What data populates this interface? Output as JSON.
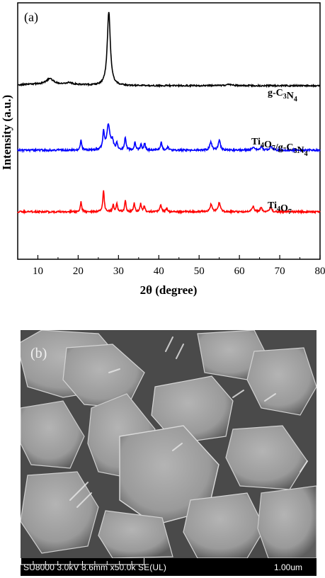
{
  "chart_data": {
    "type": "line",
    "panel_label": "(a)",
    "xlabel": "2θ (degree)",
    "ylabel": "Intensity (a.u.)",
    "xlim": [
      5,
      80
    ],
    "xticks": [
      10,
      20,
      30,
      40,
      50,
      60,
      70,
      80
    ],
    "grid": false,
    "series": [
      {
        "name": "g-C3N4",
        "name_parts": [
          [
            "g-C",
            false
          ],
          [
            "3",
            true
          ],
          [
            "N",
            false
          ],
          [
            "4",
            true
          ]
        ],
        "color": "#000000",
        "baseline": 0.18,
        "peaks": [
          [
            13.0,
            0.05,
            1.0
          ],
          [
            17.8,
            0.015,
            0.8
          ],
          [
            27.6,
            0.72,
            0.45
          ],
          [
            57.5,
            0.01,
            1.2
          ]
        ]
      },
      {
        "name": "Ti4O7/g-C3N4",
        "name_parts": [
          [
            "Ti",
            false
          ],
          [
            "4",
            true
          ],
          [
            "O",
            false
          ],
          [
            "7",
            true
          ],
          [
            "/g-C",
            false
          ],
          [
            "3",
            true
          ],
          [
            "N",
            false
          ],
          [
            "4",
            true
          ]
        ],
        "color": "#0000ff",
        "baseline": 0.0,
        "peaks": [
          [
            20.7,
            0.12,
            0.2
          ],
          [
            26.3,
            0.2,
            0.25
          ],
          [
            27.5,
            0.3,
            0.45
          ],
          [
            28.5,
            0.1,
            0.3
          ],
          [
            29.6,
            0.08,
            0.2
          ],
          [
            31.7,
            0.15,
            0.22
          ],
          [
            34.1,
            0.1,
            0.2
          ],
          [
            35.6,
            0.07,
            0.2
          ],
          [
            36.5,
            0.08,
            0.2
          ],
          [
            40.6,
            0.09,
            0.25
          ],
          [
            42.3,
            0.04,
            0.2
          ],
          [
            52.9,
            0.1,
            0.3
          ],
          [
            55.0,
            0.12,
            0.3
          ],
          [
            63.5,
            0.04,
            0.3
          ],
          [
            65.5,
            0.04,
            0.3
          ],
          [
            67.8,
            0.05,
            0.3
          ]
        ]
      },
      {
        "name": "Ti4O7",
        "name_parts": [
          [
            "Ti",
            false
          ],
          [
            "4",
            true
          ],
          [
            "O",
            false
          ],
          [
            "7",
            true
          ]
        ],
        "color": "#ff0000",
        "baseline": 0.0,
        "peaks": [
          [
            20.7,
            0.12,
            0.2
          ],
          [
            26.3,
            0.26,
            0.2
          ],
          [
            28.7,
            0.08,
            0.2
          ],
          [
            29.6,
            0.1,
            0.2
          ],
          [
            31.7,
            0.14,
            0.2
          ],
          [
            33.9,
            0.1,
            0.2
          ],
          [
            35.5,
            0.09,
            0.2
          ],
          [
            36.4,
            0.07,
            0.2
          ],
          [
            40.5,
            0.08,
            0.25
          ],
          [
            42.0,
            0.04,
            0.2
          ],
          [
            53.0,
            0.09,
            0.3
          ],
          [
            55.0,
            0.11,
            0.3
          ],
          [
            63.4,
            0.06,
            0.3
          ],
          [
            65.4,
            0.05,
            0.3
          ],
          [
            67.7,
            0.05,
            0.3
          ]
        ]
      }
    ]
  },
  "sem_image": {
    "panel_label": "(b)",
    "info_text": "SU8000 3.0kV 8.6mm x50.0k SE(UL)",
    "scale_text": "1.00um"
  }
}
